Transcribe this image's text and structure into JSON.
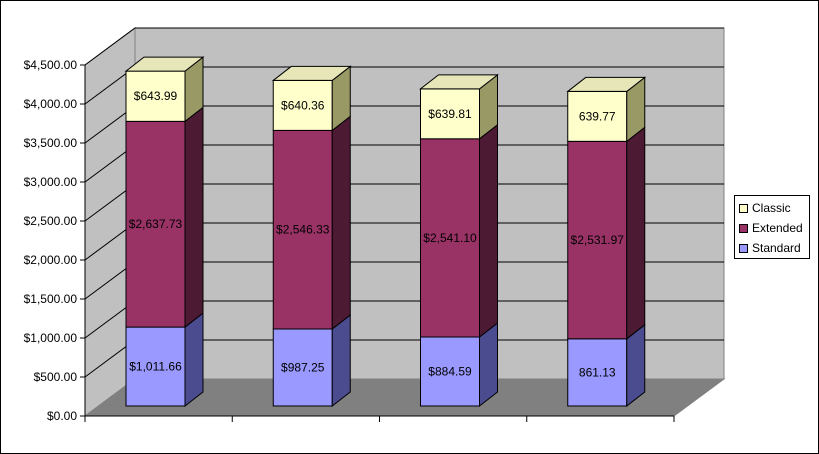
{
  "chart_data": {
    "type": "bar",
    "stacked": true,
    "three_d": true,
    "title": "",
    "xlabel": "",
    "ylabel": "",
    "ylim": [
      0,
      4500
    ],
    "y_ticks": [
      "$0.00",
      "$500.00",
      "$1,000.00",
      "$1,500.00",
      "$2,000.00",
      "$2,500.00",
      "$3,000.00",
      "$3,500.00",
      "$4,000.00",
      "$4,500.00"
    ],
    "categories": [
      "",
      "",
      "",
      ""
    ],
    "grid": true,
    "legend_position": "right",
    "series": [
      {
        "name": "Standard",
        "values": [
          1011.66,
          987.25,
          884.59,
          861.13
        ],
        "labels": [
          "$1,011.66",
          "$987.25",
          "$884.59",
          "861.13"
        ],
        "color": "#9999FF",
        "top_color": "#7B7BD6",
        "side_color": "#4B4B8F"
      },
      {
        "name": "Extended",
        "values": [
          2637.73,
          2546.33,
          2541.1,
          2531.97
        ],
        "labels": [
          "$2,637.73",
          "$2,546.33",
          "$2,541.10",
          "$2,531.97"
        ],
        "color": "#993366",
        "top_color": "#7A2852",
        "side_color": "#4C1A33"
      },
      {
        "name": "Classic",
        "values": [
          643.99,
          640.36,
          639.81,
          639.77
        ],
        "labels": [
          "$643.99",
          "$640.36",
          "$639.81",
          "639.77"
        ],
        "color": "#FFFFCC",
        "top_color": "#E6E6B8",
        "side_color": "#999966"
      }
    ],
    "legend_order": [
      2,
      1,
      0
    ]
  }
}
